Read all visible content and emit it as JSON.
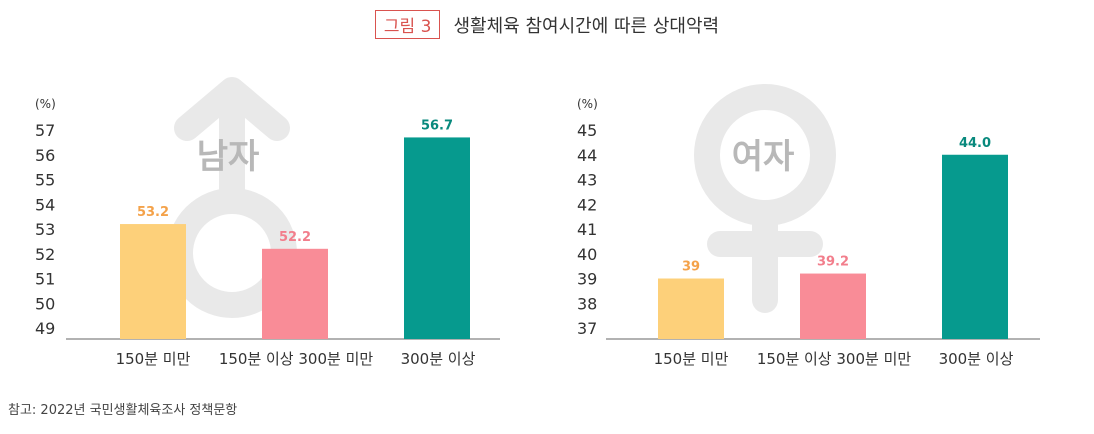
{
  "figure": {
    "label": "그림 3",
    "title": "생활체육 참여시간에 따른 상대악력"
  },
  "source": "참고: 2022년 국민생활체육조사 정책문항",
  "chart_data": [
    {
      "type": "bar",
      "badge": "남자",
      "symbol": "male-symbol",
      "unit": "(%)",
      "categories": [
        "150분 미만",
        "150분 이상 300분 미만",
        "300분 이상"
      ],
      "values": [
        53.2,
        52.2,
        56.7
      ],
      "value_labels": [
        "53.2",
        "52.2",
        "56.7"
      ],
      "ylim": [
        49,
        57
      ],
      "yticks": [
        "57",
        "56",
        "55",
        "54",
        "53",
        "52",
        "51",
        "50",
        "49"
      ],
      "colors": [
        "#fdd07a",
        "#f98c97",
        "#069a8e"
      ],
      "label_colors": [
        "#f4a24a",
        "#f27e8c",
        "#08897d"
      ],
      "grid": false
    },
    {
      "type": "bar",
      "badge": "여자",
      "symbol": "female-symbol",
      "unit": "(%)",
      "categories": [
        "150분 미만",
        "150분 이상 300분 미만",
        "300분 이상"
      ],
      "values": [
        39,
        39.2,
        44.0
      ],
      "value_labels": [
        "39",
        "39.2",
        "44.0"
      ],
      "ylim": [
        37,
        45
      ],
      "yticks": [
        "45",
        "44",
        "43",
        "42",
        "41",
        "40",
        "39",
        "38",
        "37"
      ],
      "colors": [
        "#fdd07a",
        "#f98c97",
        "#069a8e"
      ],
      "label_colors": [
        "#f4a24a",
        "#f27e8c",
        "#08897d"
      ],
      "grid": false
    }
  ]
}
